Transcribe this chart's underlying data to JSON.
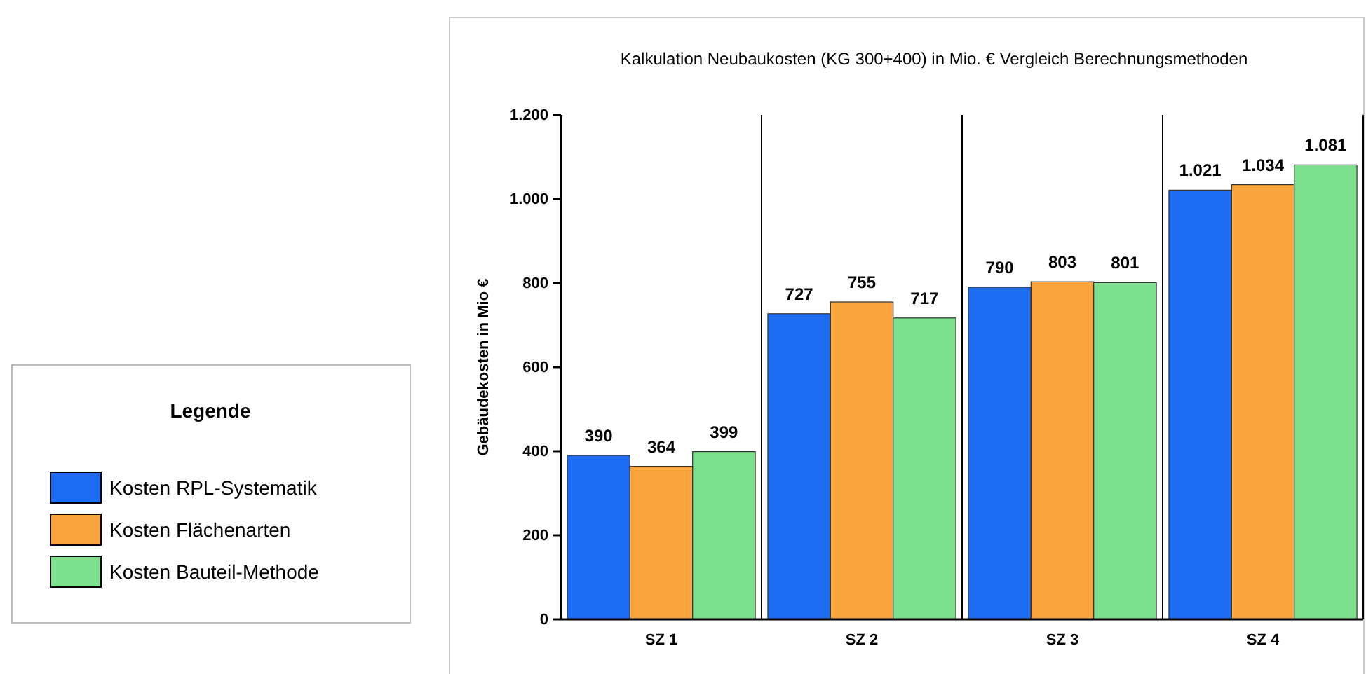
{
  "chart_data": {
    "type": "bar",
    "title": "Kalkulation Neubaukosten (KG 300+400) in Mio. € Vergleich Berechnungsmethoden",
    "ylabel": "Gebäudekosten in Mio €",
    "legend_title": "Legende",
    "categories": [
      "SZ 1",
      "SZ 2",
      "SZ 3",
      "SZ 4"
    ],
    "series": [
      {
        "name": "Kosten RPL-Systematik",
        "color": "#1e6cf2",
        "values": [
          390,
          727,
          790,
          1021
        ],
        "value_labels": [
          "390",
          "727",
          "790",
          "1.021"
        ]
      },
      {
        "name": "Kosten Flächenarten",
        "color": "#f9a43c",
        "values": [
          364,
          755,
          803,
          1034
        ],
        "value_labels": [
          "364",
          "755",
          "803",
          "1.034"
        ]
      },
      {
        "name": "Kosten Bauteil-Methode",
        "color": "#7ce08c",
        "values": [
          399,
          717,
          801,
          1081
        ],
        "value_labels": [
          "399",
          "717",
          "801",
          "1.081"
        ]
      }
    ],
    "ylim": [
      0,
      1200
    ],
    "yticks": [
      0,
      200,
      400,
      600,
      800,
      {
        "value": 1000,
        "label": "1.000"
      },
      {
        "value": 1200,
        "label": "1.200"
      }
    ],
    "grid": "x",
    "legend": "left"
  }
}
